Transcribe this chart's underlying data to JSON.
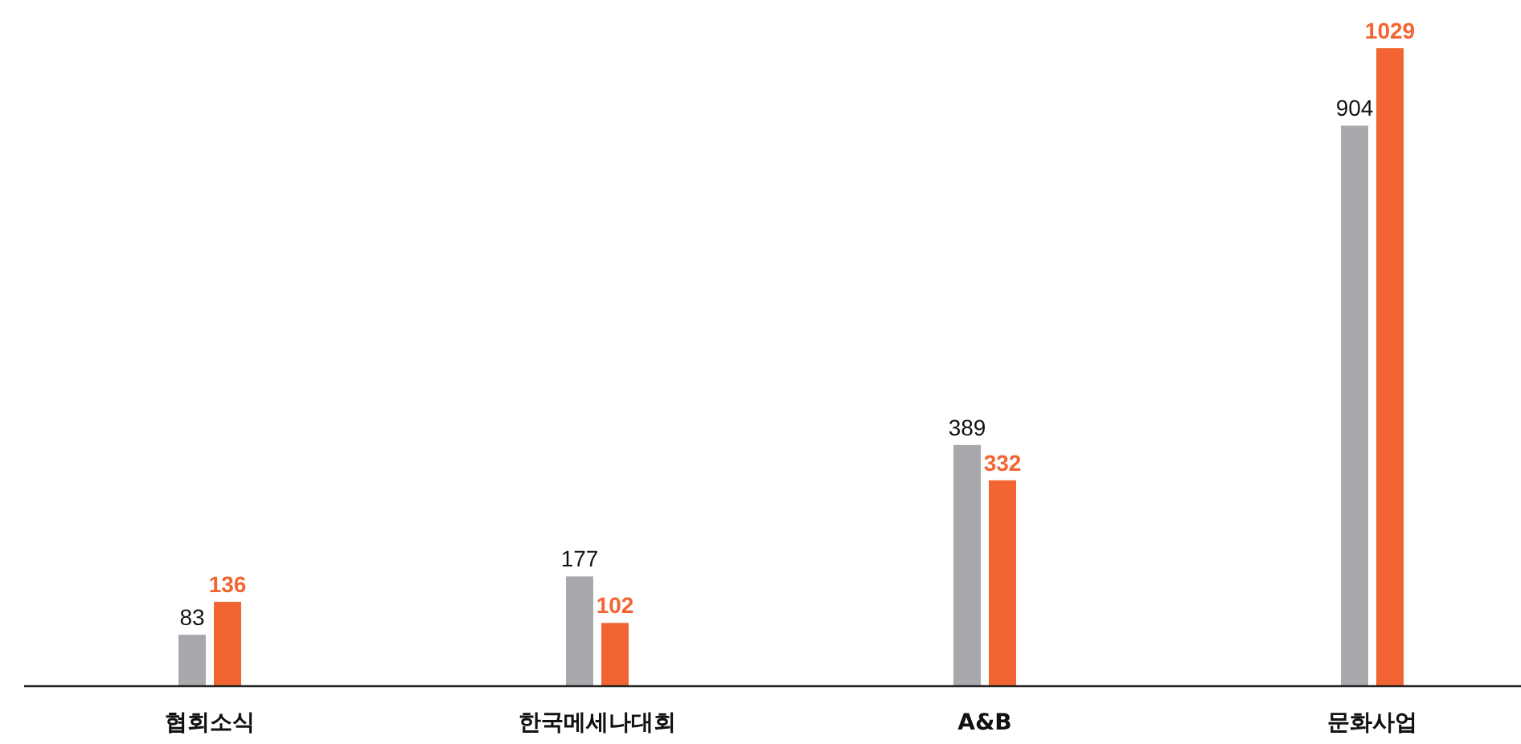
{
  "chart_data": {
    "type": "bar",
    "categories": [
      "협회소식",
      "한국메세나대회",
      "A&B",
      "문화사업"
    ],
    "series": [
      {
        "color": "#a7a9ac",
        "values": [
          83,
          177,
          389,
          904
        ]
      },
      {
        "color": "#f26532",
        "values": [
          136,
          102,
          332,
          1029
        ]
      }
    ],
    "data_labels": true
  }
}
